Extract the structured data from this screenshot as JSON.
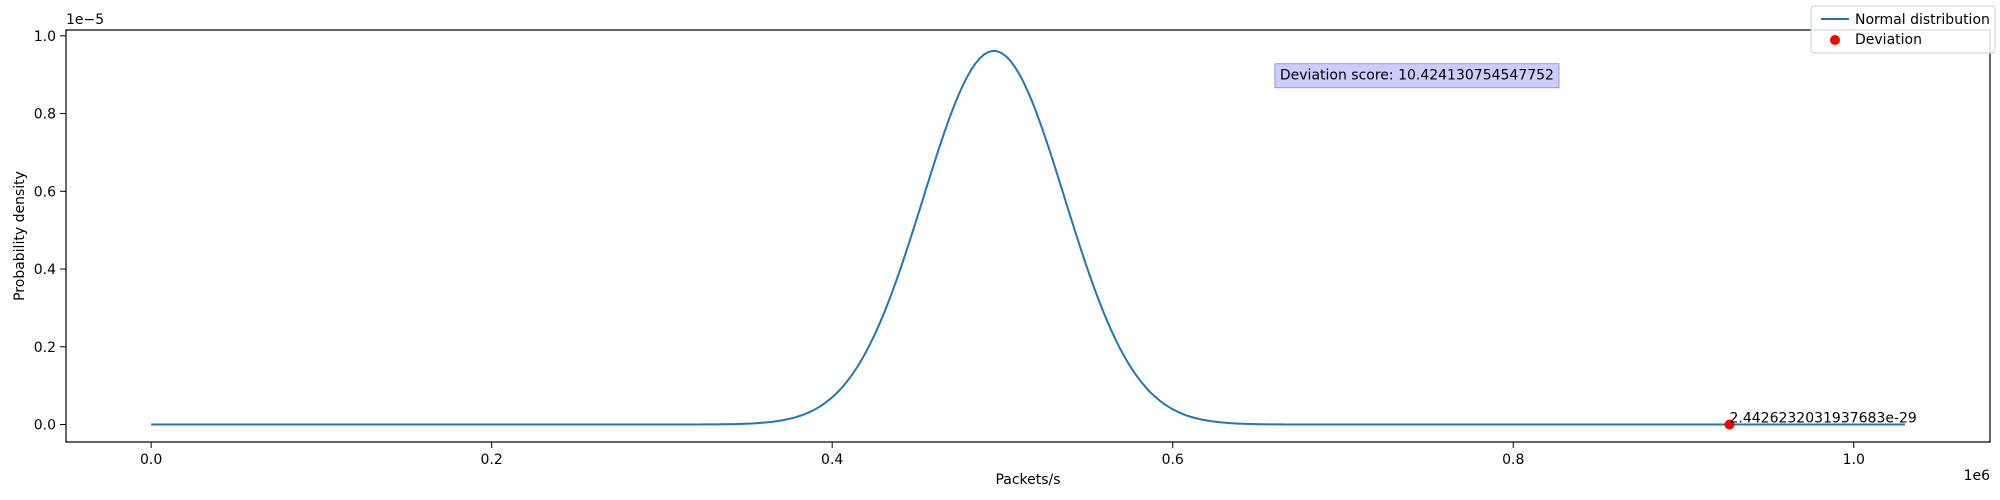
{
  "chart_data": {
    "type": "line",
    "title": "",
    "xlabel": "Packets/s",
    "ylabel": "Probability density",
    "x_offset_label": "1e6",
    "y_offset_label": "1e−5",
    "xlim": [
      -50000,
      1080000
    ],
    "ylim": [
      -4.5e-07,
      1.015e-05
    ],
    "x_ticks": [
      {
        "value": 0,
        "label": "0.0"
      },
      {
        "value": 200000,
        "label": "0.2"
      },
      {
        "value": 400000,
        "label": "0.4"
      },
      {
        "value": 600000,
        "label": "0.6"
      },
      {
        "value": 800000,
        "label": "0.8"
      },
      {
        "value": 1000000,
        "label": "1.0"
      }
    ],
    "y_ticks": [
      {
        "value": 0,
        "label": "0.0"
      },
      {
        "value": 2e-06,
        "label": "0.2"
      },
      {
        "value": 4e-06,
        "label": "0.4"
      },
      {
        "value": 6e-06,
        "label": "0.6"
      },
      {
        "value": 8e-06,
        "label": "0.8"
      },
      {
        "value": 1e-05,
        "label": "1.0"
      }
    ],
    "grid": false,
    "legend_position": "top-right",
    "series": [
      {
        "name": "Normal distribution",
        "kind": "line",
        "color": "#1f77b4",
        "distribution": {
          "mean": 495000,
          "std": 41500,
          "x_min": 0,
          "x_max": 1030000,
          "samples": 400
        }
      },
      {
        "name": "Deviation",
        "kind": "scatter",
        "color": "#ff0000",
        "points": [
          {
            "x": 927000,
            "y": 2.4426232031937683e-29
          }
        ]
      }
    ],
    "annotations": [
      {
        "text": "Deviation score: 10.424130754547752",
        "x": 660000,
        "y": 9e-06,
        "boxed": true,
        "box_color": "#ccccff",
        "edge_color": "#9999dd"
      },
      {
        "text": "2.4426232031937683e-29",
        "x": 927000,
        "y": 0.0,
        "boxed": false
      }
    ]
  }
}
